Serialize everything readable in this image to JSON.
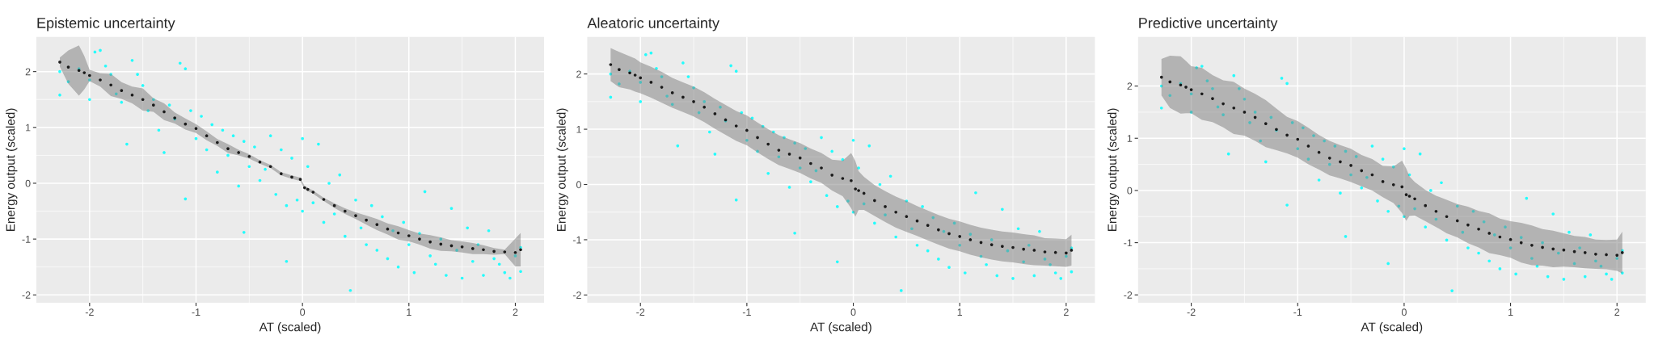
{
  "chart_data": [
    {
      "type": "scatter",
      "title": "Epistemic uncertainty",
      "xlabel": "AT (scaled)",
      "ylabel": "Energy output (scaled)",
      "xlim": [
        -2.5,
        2.27
      ],
      "ylim": [
        -2.14,
        2.62
      ],
      "xticks": [
        -2,
        -1,
        0,
        1,
        2
      ],
      "yticks": [
        -2,
        -1,
        0,
        1,
        2
      ],
      "grid": true,
      "marker": "circle",
      "series": [
        {
          "color": "#00ffff",
          "x": [
            -2.28,
            -2.28,
            -2.2,
            -2.1,
            -2.0,
            -2.0,
            -1.95,
            -1.9,
            -1.85,
            -1.8,
            -1.75,
            -1.7,
            -1.65,
            -1.6,
            -1.55,
            -1.5,
            -1.45,
            -1.4,
            -1.35,
            -1.3,
            -1.25,
            -1.2,
            -1.15,
            -1.1,
            -1.1,
            -1.05,
            -1.0,
            -0.95,
            -0.9,
            -0.85,
            -0.8,
            -0.75,
            -0.7,
            -0.65,
            -0.6,
            -0.55,
            -0.55,
            -0.5,
            -0.45,
            -0.4,
            -0.35,
            -0.3,
            -0.25,
            -0.2,
            -0.15,
            -0.15,
            -0.1,
            -0.05,
            0.0,
            0.0,
            0.05,
            0.1,
            0.15,
            0.2,
            0.25,
            0.3,
            0.35,
            0.4,
            0.45,
            0.5,
            0.55,
            0.6,
            0.65,
            0.7,
            0.75,
            0.8,
            0.85,
            0.9,
            0.95,
            1.0,
            1.05,
            1.1,
            1.15,
            1.2,
            1.25,
            1.3,
            1.35,
            1.4,
            1.45,
            1.5,
            1.55,
            1.6,
            1.65,
            1.7,
            1.75,
            1.8,
            1.85,
            1.9,
            1.95,
            2.0,
            2.05,
            2.05
          ],
          "values": [
            2.0,
            1.58,
            1.82,
            2.05,
            1.85,
            1.5,
            2.35,
            2.38,
            2.1,
            1.95,
            1.6,
            1.45,
            0.7,
            2.2,
            1.95,
            1.75,
            1.3,
            1.5,
            0.95,
            0.55,
            1.4,
            1.15,
            2.15,
            2.05,
            -0.28,
            1.3,
            0.8,
            1.2,
            0.6,
            1.05,
            0.2,
            0.95,
            0.5,
            0.85,
            -0.05,
            0.75,
            -0.88,
            0.3,
            0.65,
            0.05,
            0.25,
            0.85,
            -0.2,
            0.6,
            -0.4,
            -1.4,
            0.45,
            -0.3,
            0.8,
            -0.5,
            0.3,
            -0.35,
            0.7,
            -0.7,
            0.0,
            -0.55,
            0.15,
            -0.95,
            -1.92,
            -0.3,
            -0.8,
            -1.1,
            -0.4,
            -1.2,
            -0.6,
            -1.35,
            -0.85,
            -1.5,
            -0.7,
            -1.1,
            -1.6,
            -0.9,
            -0.15,
            -1.3,
            -1.45,
            -1.0,
            -1.65,
            -0.45,
            -1.2,
            -1.7,
            -0.8,
            -1.4,
            -1.1,
            -1.65,
            -0.85,
            -1.35,
            -1.45,
            -1.6,
            -1.7,
            -1.3,
            -1.58,
            -1.15
          ]
        },
        {
          "color": "#000000",
          "x": [
            -2.28,
            -2.2,
            -2.1,
            -2.05,
            -2.0,
            -1.9,
            -1.8,
            -1.7,
            -1.6,
            -1.5,
            -1.4,
            -1.3,
            -1.2,
            -1.1,
            -1.0,
            -0.9,
            -0.8,
            -0.7,
            -0.6,
            -0.5,
            -0.4,
            -0.3,
            -0.2,
            -0.1,
            -0.02,
            0.02,
            0.05,
            0.1,
            0.2,
            0.3,
            0.4,
            0.5,
            0.6,
            0.7,
            0.8,
            0.9,
            1.0,
            1.1,
            1.2,
            1.3,
            1.4,
            1.5,
            1.6,
            1.7,
            1.8,
            1.9,
            2.0,
            2.05
          ],
          "values": [
            2.17,
            2.08,
            2.02,
            1.98,
            1.93,
            1.85,
            1.76,
            1.66,
            1.58,
            1.5,
            1.4,
            1.28,
            1.17,
            1.06,
            0.98,
            0.85,
            0.73,
            0.62,
            0.55,
            0.48,
            0.38,
            0.3,
            0.17,
            0.11,
            0.07,
            -0.08,
            -0.11,
            -0.16,
            -0.29,
            -0.4,
            -0.5,
            -0.58,
            -0.66,
            -0.74,
            -0.82,
            -0.89,
            -0.94,
            -1.0,
            -1.05,
            -1.09,
            -1.12,
            -1.14,
            -1.17,
            -1.19,
            -1.22,
            -1.23,
            -1.24,
            -1.19
          ],
          "lower": [
            2.09,
            1.78,
            1.57,
            1.68,
            1.83,
            1.73,
            1.56,
            1.51,
            1.43,
            1.3,
            1.28,
            1.13,
            1.07,
            0.96,
            0.9,
            0.77,
            0.67,
            0.54,
            0.5,
            0.44,
            0.35,
            0.27,
            0.14,
            0.08,
            0.04,
            -0.11,
            -0.14,
            -0.19,
            -0.32,
            -0.44,
            -0.55,
            -0.64,
            -0.74,
            -0.84,
            -0.92,
            -1.01,
            -1.04,
            -1.1,
            -1.17,
            -1.21,
            -1.22,
            -1.24,
            -1.27,
            -1.27,
            -1.28,
            -1.27,
            -1.49,
            -1.49
          ],
          "upper": [
            2.25,
            2.38,
            2.47,
            2.28,
            2.03,
            1.97,
            1.96,
            1.81,
            1.73,
            1.7,
            1.52,
            1.43,
            1.27,
            1.16,
            1.06,
            0.93,
            0.79,
            0.7,
            0.6,
            0.52,
            0.41,
            0.33,
            0.2,
            0.14,
            0.1,
            -0.05,
            -0.08,
            -0.13,
            -0.26,
            -0.36,
            -0.45,
            -0.52,
            -0.58,
            -0.64,
            -0.72,
            -0.77,
            -0.84,
            -0.9,
            -0.93,
            -0.97,
            -1.02,
            -1.04,
            -1.07,
            -1.11,
            -1.16,
            -1.19,
            -0.99,
            -0.89
          ]
        }
      ]
    },
    {
      "type": "scatter",
      "title": "Aleatoric uncertainty",
      "xlabel": "AT (scaled)",
      "ylabel": "Energy output (scaled)",
      "xlim": [
        -2.5,
        2.27
      ],
      "ylim": [
        -2.14,
        2.67
      ],
      "xticks": [
        -2,
        -1,
        0,
        1,
        2
      ],
      "yticks": [
        -2,
        -1,
        0,
        1,
        2
      ],
      "grid": true,
      "marker": "circle",
      "series": [
        {
          "color": "#00ffff",
          "x": [
            -2.28,
            -2.28,
            -2.2,
            -2.1,
            -2.0,
            -2.0,
            -1.95,
            -1.9,
            -1.85,
            -1.8,
            -1.75,
            -1.7,
            -1.65,
            -1.6,
            -1.55,
            -1.5,
            -1.45,
            -1.4,
            -1.35,
            -1.3,
            -1.25,
            -1.2,
            -1.15,
            -1.1,
            -1.1,
            -1.05,
            -1.0,
            -0.95,
            -0.9,
            -0.85,
            -0.8,
            -0.75,
            -0.7,
            -0.65,
            -0.6,
            -0.55,
            -0.55,
            -0.5,
            -0.45,
            -0.4,
            -0.35,
            -0.3,
            -0.25,
            -0.2,
            -0.15,
            -0.15,
            -0.1,
            -0.05,
            0.0,
            0.0,
            0.05,
            0.1,
            0.15,
            0.2,
            0.25,
            0.3,
            0.35,
            0.4,
            0.45,
            0.5,
            0.55,
            0.6,
            0.65,
            0.7,
            0.75,
            0.8,
            0.85,
            0.9,
            0.95,
            1.0,
            1.05,
            1.1,
            1.15,
            1.2,
            1.25,
            1.3,
            1.35,
            1.4,
            1.45,
            1.5,
            1.55,
            1.6,
            1.65,
            1.7,
            1.75,
            1.8,
            1.85,
            1.9,
            1.95,
            2.0,
            2.05,
            2.05
          ],
          "values": [
            2.0,
            1.58,
            1.82,
            2.05,
            1.85,
            1.5,
            2.35,
            2.38,
            2.1,
            1.95,
            1.6,
            1.45,
            0.7,
            2.2,
            1.95,
            1.75,
            1.3,
            1.5,
            0.95,
            0.55,
            1.4,
            1.15,
            2.15,
            2.05,
            -0.28,
            1.3,
            0.8,
            1.2,
            0.6,
            1.05,
            0.2,
            0.95,
            0.5,
            0.85,
            -0.05,
            0.75,
            -0.88,
            0.3,
            0.65,
            0.05,
            0.25,
            0.85,
            -0.2,
            0.6,
            -0.4,
            -1.4,
            0.45,
            -0.3,
            0.8,
            -0.5,
            0.3,
            -0.35,
            0.7,
            -0.7,
            0.0,
            -0.55,
            0.15,
            -0.95,
            -1.92,
            -0.3,
            -0.8,
            -1.1,
            -0.4,
            -1.2,
            -0.6,
            -1.35,
            -0.85,
            -1.5,
            -0.7,
            -1.1,
            -1.6,
            -0.9,
            -0.15,
            -1.3,
            -1.45,
            -1.0,
            -1.65,
            -0.45,
            -1.2,
            -1.7,
            -0.8,
            -1.4,
            -1.1,
            -1.65,
            -0.85,
            -1.35,
            -1.45,
            -1.6,
            -1.7,
            -1.3,
            -1.58,
            -1.15
          ]
        },
        {
          "color": "#000000",
          "x": [
            -2.28,
            -2.2,
            -2.1,
            -2.05,
            -2.0,
            -1.9,
            -1.8,
            -1.7,
            -1.6,
            -1.5,
            -1.4,
            -1.3,
            -1.2,
            -1.1,
            -1.0,
            -0.9,
            -0.8,
            -0.7,
            -0.6,
            -0.5,
            -0.4,
            -0.3,
            -0.2,
            -0.1,
            -0.02,
            0.02,
            0.05,
            0.1,
            0.2,
            0.3,
            0.4,
            0.5,
            0.6,
            0.7,
            0.8,
            0.9,
            1.0,
            1.1,
            1.2,
            1.3,
            1.4,
            1.5,
            1.6,
            1.7,
            1.8,
            1.9,
            2.0,
            2.05
          ],
          "values": [
            2.17,
            2.08,
            2.02,
            1.98,
            1.93,
            1.85,
            1.76,
            1.66,
            1.58,
            1.5,
            1.4,
            1.28,
            1.17,
            1.06,
            0.98,
            0.85,
            0.73,
            0.62,
            0.55,
            0.48,
            0.38,
            0.3,
            0.17,
            0.11,
            0.07,
            -0.08,
            -0.11,
            -0.16,
            -0.29,
            -0.4,
            -0.5,
            -0.58,
            -0.66,
            -0.74,
            -0.82,
            -0.89,
            -0.94,
            -1.0,
            -1.05,
            -1.09,
            -1.12,
            -1.14,
            -1.17,
            -1.19,
            -1.22,
            -1.23,
            -1.24,
            -1.19
          ],
          "lower": [
            1.87,
            1.76,
            1.72,
            1.68,
            1.65,
            1.57,
            1.48,
            1.39,
            1.31,
            1.23,
            1.13,
            1.01,
            0.9,
            0.79,
            0.71,
            0.58,
            0.46,
            0.35,
            0.28,
            0.21,
            0.11,
            0.03,
            -0.11,
            -0.21,
            -0.43,
            -0.58,
            -0.46,
            -0.46,
            -0.57,
            -0.68,
            -0.78,
            -0.86,
            -0.93,
            -1.01,
            -1.09,
            -1.16,
            -1.21,
            -1.27,
            -1.32,
            -1.36,
            -1.39,
            -1.41,
            -1.44,
            -1.46,
            -1.47,
            -1.48,
            -1.49,
            -1.47
          ],
          "upper": [
            2.47,
            2.4,
            2.32,
            2.28,
            2.21,
            2.13,
            2.04,
            1.93,
            1.85,
            1.77,
            1.67,
            1.55,
            1.44,
            1.33,
            1.25,
            1.12,
            1.0,
            0.89,
            0.82,
            0.75,
            0.65,
            0.57,
            0.45,
            0.43,
            0.57,
            0.42,
            0.24,
            0.14,
            -0.01,
            -0.12,
            -0.22,
            -0.3,
            -0.39,
            -0.47,
            -0.55,
            -0.62,
            -0.67,
            -0.73,
            -0.78,
            -0.82,
            -0.85,
            -0.87,
            -0.9,
            -0.92,
            -0.97,
            -0.98,
            -0.99,
            -0.91
          ]
        }
      ]
    },
    {
      "type": "scatter",
      "title": "Predictive uncertainty",
      "xlabel": "AT (scaled)",
      "ylabel": "Energy output (scaled)",
      "xlim": [
        -2.5,
        2.27
      ],
      "ylim": [
        -2.15,
        2.94
      ],
      "xticks": [
        -2,
        -1,
        0,
        1,
        2
      ],
      "yticks": [
        -2,
        -1,
        0,
        1,
        2
      ],
      "grid": true,
      "marker": "circle",
      "series": [
        {
          "color": "#00ffff",
          "x": [
            -2.28,
            -2.28,
            -2.2,
            -2.1,
            -2.0,
            -2.0,
            -1.95,
            -1.9,
            -1.85,
            -1.8,
            -1.75,
            -1.7,
            -1.65,
            -1.6,
            -1.55,
            -1.5,
            -1.45,
            -1.4,
            -1.35,
            -1.3,
            -1.25,
            -1.2,
            -1.15,
            -1.1,
            -1.1,
            -1.05,
            -1.0,
            -0.95,
            -0.9,
            -0.85,
            -0.8,
            -0.75,
            -0.7,
            -0.65,
            -0.6,
            -0.55,
            -0.55,
            -0.5,
            -0.45,
            -0.4,
            -0.35,
            -0.3,
            -0.25,
            -0.2,
            -0.15,
            -0.15,
            -0.1,
            -0.05,
            0.0,
            0.0,
            0.05,
            0.1,
            0.15,
            0.2,
            0.25,
            0.3,
            0.35,
            0.4,
            0.45,
            0.5,
            0.55,
            0.6,
            0.65,
            0.7,
            0.75,
            0.8,
            0.85,
            0.9,
            0.95,
            1.0,
            1.05,
            1.1,
            1.15,
            1.2,
            1.25,
            1.3,
            1.35,
            1.4,
            1.45,
            1.5,
            1.55,
            1.6,
            1.65,
            1.7,
            1.75,
            1.8,
            1.85,
            1.9,
            1.95,
            2.0,
            2.05,
            2.05
          ],
          "values": [
            2.0,
            1.58,
            1.82,
            2.05,
            1.85,
            1.5,
            2.35,
            2.38,
            2.1,
            1.95,
            1.6,
            1.45,
            0.7,
            2.2,
            1.95,
            1.75,
            1.3,
            1.5,
            0.95,
            0.55,
            1.4,
            1.15,
            2.15,
            2.05,
            -0.28,
            1.3,
            0.8,
            1.2,
            0.6,
            1.05,
            0.2,
            0.95,
            0.5,
            0.85,
            -0.05,
            0.75,
            -0.88,
            0.3,
            0.65,
            0.05,
            0.25,
            0.85,
            -0.2,
            0.6,
            -0.4,
            -1.4,
            0.45,
            -0.3,
            0.8,
            -0.5,
            0.3,
            -0.35,
            0.7,
            -0.7,
            0.0,
            -0.55,
            0.15,
            -0.95,
            -1.92,
            -0.3,
            -0.8,
            -1.1,
            -0.4,
            -1.2,
            -0.6,
            -1.35,
            -0.85,
            -1.5,
            -0.7,
            -1.1,
            -1.6,
            -0.9,
            -0.15,
            -1.3,
            -1.45,
            -1.0,
            -1.65,
            -0.45,
            -1.2,
            -1.7,
            -0.8,
            -1.4,
            -1.1,
            -1.65,
            -0.85,
            -1.35,
            -1.45,
            -1.6,
            -1.7,
            -1.3,
            -1.58,
            -1.15
          ]
        },
        {
          "color": "#000000",
          "x": [
            -2.28,
            -2.2,
            -2.1,
            -2.05,
            -2.0,
            -1.9,
            -1.8,
            -1.7,
            -1.6,
            -1.5,
            -1.4,
            -1.3,
            -1.2,
            -1.1,
            -1.0,
            -0.9,
            -0.8,
            -0.7,
            -0.6,
            -0.5,
            -0.4,
            -0.3,
            -0.2,
            -0.1,
            -0.02,
            0.02,
            0.05,
            0.1,
            0.2,
            0.3,
            0.4,
            0.5,
            0.6,
            0.7,
            0.8,
            0.9,
            1.0,
            1.1,
            1.2,
            1.3,
            1.4,
            1.5,
            1.6,
            1.7,
            1.8,
            1.9,
            2.0,
            2.05
          ],
          "values": [
            2.17,
            2.08,
            2.02,
            1.98,
            1.93,
            1.85,
            1.76,
            1.66,
            1.58,
            1.5,
            1.4,
            1.28,
            1.17,
            1.06,
            0.98,
            0.85,
            0.73,
            0.62,
            0.55,
            0.48,
            0.38,
            0.3,
            0.17,
            0.11,
            0.07,
            -0.08,
            -0.11,
            -0.16,
            -0.29,
            -0.4,
            -0.5,
            -0.58,
            -0.66,
            -0.74,
            -0.82,
            -0.89,
            -0.94,
            -1.0,
            -1.05,
            -1.09,
            -1.12,
            -1.14,
            -1.17,
            -1.19,
            -1.22,
            -1.23,
            -1.24,
            -1.19
          ],
          "lower": [
            1.82,
            1.58,
            1.47,
            1.48,
            1.48,
            1.35,
            1.31,
            1.21,
            1.08,
            1.05,
            0.95,
            0.83,
            0.77,
            0.71,
            0.63,
            0.5,
            0.4,
            0.29,
            0.23,
            0.16,
            0.08,
            0.0,
            -0.13,
            -0.24,
            -0.43,
            -0.58,
            -0.49,
            -0.48,
            -0.59,
            -0.7,
            -0.82,
            -0.9,
            -1.01,
            -1.09,
            -1.2,
            -1.24,
            -1.29,
            -1.38,
            -1.43,
            -1.44,
            -1.47,
            -1.46,
            -1.47,
            -1.49,
            -1.5,
            -1.51,
            -1.54,
            -1.59
          ],
          "upper": [
            2.52,
            2.58,
            2.57,
            2.48,
            2.38,
            2.35,
            2.21,
            2.11,
            2.08,
            1.95,
            1.85,
            1.73,
            1.57,
            1.41,
            1.33,
            1.2,
            1.06,
            0.95,
            0.87,
            0.8,
            0.68,
            0.6,
            0.47,
            0.46,
            0.57,
            0.42,
            0.27,
            0.16,
            0.01,
            -0.1,
            -0.18,
            -0.26,
            -0.31,
            -0.39,
            -0.44,
            -0.54,
            -0.59,
            -0.62,
            -0.67,
            -0.74,
            -0.77,
            -0.82,
            -0.87,
            -0.89,
            -0.94,
            -0.95,
            -0.94,
            -0.79
          ]
        }
      ]
    }
  ]
}
